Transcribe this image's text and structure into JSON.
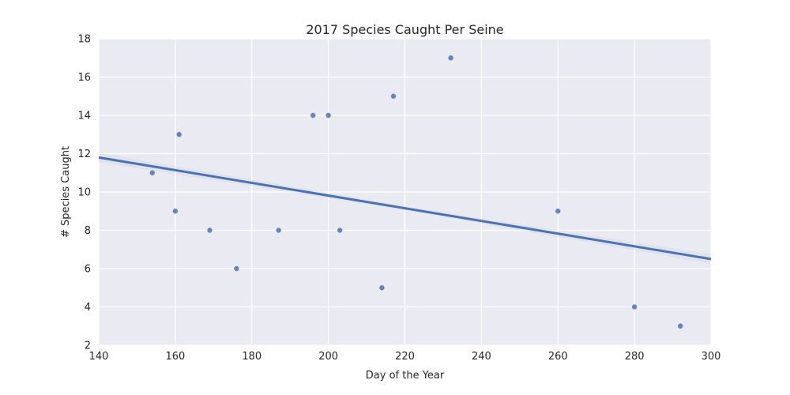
{
  "chart_data": {
    "type": "scatter",
    "title": "2017 Species Caught Per Seine",
    "xlabel": "Day of the Year",
    "ylabel": "# Species Caught",
    "xlim": [
      140,
      300
    ],
    "ylim": [
      2,
      18
    ],
    "xticks": [
      140,
      160,
      180,
      200,
      220,
      240,
      260,
      280,
      300
    ],
    "yticks": [
      2,
      4,
      6,
      8,
      10,
      12,
      14,
      16,
      18
    ],
    "grid": true,
    "points": [
      {
        "x": 154,
        "y": 11
      },
      {
        "x": 160,
        "y": 9
      },
      {
        "x": 161,
        "y": 13
      },
      {
        "x": 169,
        "y": 8
      },
      {
        "x": 176,
        "y": 6
      },
      {
        "x": 187,
        "y": 8
      },
      {
        "x": 196,
        "y": 14
      },
      {
        "x": 200,
        "y": 14
      },
      {
        "x": 203,
        "y": 8
      },
      {
        "x": 214,
        "y": 5
      },
      {
        "x": 217,
        "y": 15
      },
      {
        "x": 232,
        "y": 17
      },
      {
        "x": 260,
        "y": 9
      },
      {
        "x": 280,
        "y": 4
      },
      {
        "x": 292,
        "y": 3
      }
    ],
    "regression_line": {
      "x": [
        140,
        300
      ],
      "y": [
        11.8,
        6.5
      ]
    },
    "colors": {
      "background": "#eaeaf2",
      "grid": "#ffffff",
      "points": "#4c72b0",
      "line": "#4c72b0"
    }
  }
}
